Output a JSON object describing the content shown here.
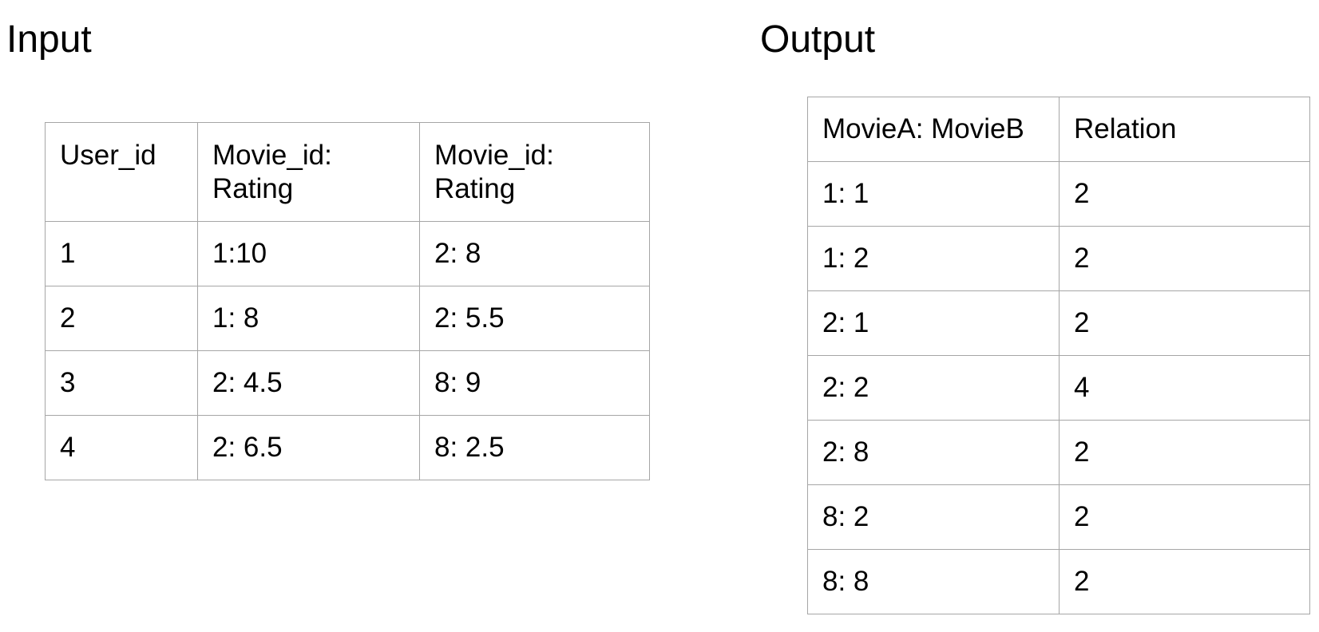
{
  "input": {
    "title": "Input",
    "headers": [
      "User_id",
      "Movie_id:\nRating",
      "Movie_id:\nRating"
    ],
    "rows": [
      [
        "1",
        "1:10",
        "2: 8"
      ],
      [
        "2",
        "1: 8",
        "2: 5.5"
      ],
      [
        "3",
        "2: 4.5",
        "8: 9"
      ],
      [
        "4",
        "2: 6.5",
        "8: 2.5"
      ]
    ]
  },
  "output": {
    "title": "Output",
    "headers": [
      "MovieA: MovieB",
      "Relation"
    ],
    "rows": [
      [
        "1: 1",
        "2"
      ],
      [
        "1: 2",
        "2"
      ],
      [
        "2: 1",
        "2"
      ],
      [
        "2: 2",
        "4"
      ],
      [
        "2: 8",
        "2"
      ],
      [
        "8: 2",
        "2"
      ],
      [
        "8: 8",
        "2"
      ]
    ]
  }
}
